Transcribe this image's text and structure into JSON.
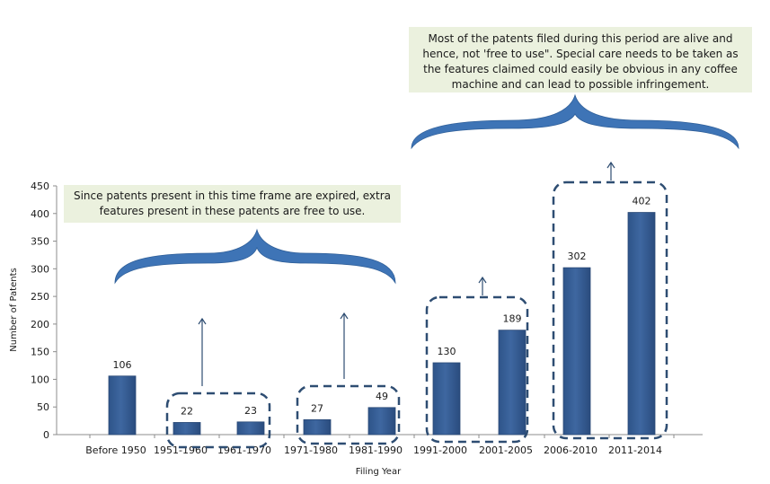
{
  "chart_data": {
    "type": "bar",
    "categories": [
      "Before 1950",
      "1951-1960",
      "1961-1970",
      "1971-1980",
      "1981-1990",
      "1991-2000",
      "2001-2005",
      "2006-2010",
      "2011-2014"
    ],
    "values": [
      106,
      22,
      23,
      27,
      49,
      130,
      189,
      302,
      402
    ],
    "xlabel": "Filing  Year",
    "ylabel": "Number  of Patents",
    "ylim": [
      0,
      450
    ],
    "yticks": [
      0,
      50,
      100,
      150,
      200,
      250,
      300,
      350,
      400,
      450
    ],
    "bar_color": "#3E67A0",
    "grid": false,
    "data_labels": true
  },
  "annotations": {
    "top_note": "Most of the patents filed during this period are alive and hence, not 'free to use\". Special care needs to be taken as the features claimed could easily be obvious in any coffee machine and can lead to possible infringement.",
    "left_note": "Since patents present in this time frame are expired, extra features present in these patents are free to use.",
    "note_bg_color": "#EBF1DE",
    "brace_color": "#3E74B6",
    "group_box_color": "#2E4D72"
  }
}
